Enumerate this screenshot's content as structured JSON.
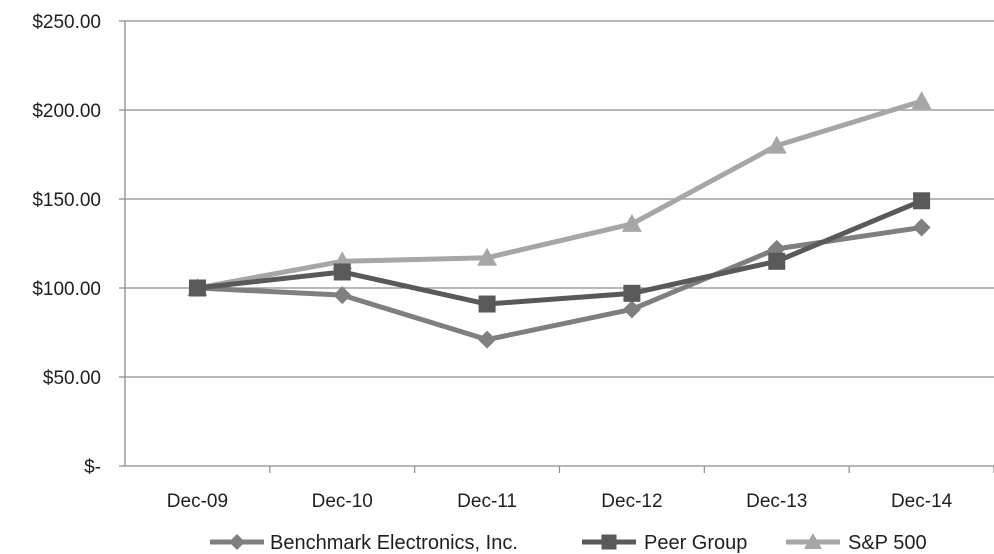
{
  "chart_data": {
    "type": "line",
    "title": "",
    "xlabel": "",
    "ylabel": "",
    "categories": [
      "Dec-09",
      "Dec-10",
      "Dec-11",
      "Dec-12",
      "Dec-13",
      "Dec-14"
    ],
    "y_tick_values": [
      0,
      50,
      100,
      150,
      200,
      250
    ],
    "y_tick_labels": [
      "$-",
      "$50.00",
      "$100.00",
      "$150.00",
      "$200.00",
      "$250.00"
    ],
    "ylim": [
      0,
      250
    ],
    "grid": "horizontal",
    "legend_position": "bottom",
    "series": [
      {
        "name": "Benchmark Electronics, Inc.",
        "marker": "diamond",
        "color": "#7f7f7f",
        "values": [
          100,
          96,
          71,
          88,
          122,
          134
        ]
      },
      {
        "name": "Peer Group",
        "marker": "square",
        "color": "#595959",
        "values": [
          100,
          109,
          91,
          97,
          115,
          149
        ]
      },
      {
        "name": "S&P 500",
        "marker": "triangle",
        "color": "#a6a6a6",
        "values": [
          100,
          115,
          117,
          136,
          180,
          205
        ]
      }
    ]
  }
}
